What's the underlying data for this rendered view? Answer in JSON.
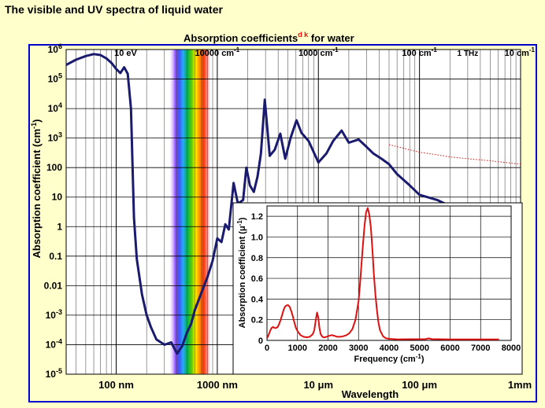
{
  "page_title": "The visible and UV spectra of liquid water",
  "colors": {
    "background": "#ffffcc",
    "frame": "#0000cc",
    "main_curve": "#1a1a6e",
    "inset_curve": "#dd1111",
    "title_superscript": "#ff0000"
  },
  "chart_data": [
    {
      "type": "line",
      "title": "Absorption coefficients",
      "title_superscript": "d k",
      "title_suffix": " for water",
      "xlabel": "Wavelength",
      "ylabel": "Absorption coefficient (cm",
      "ylabel_sup": "-1",
      "ylabel_end": ")",
      "x_scale": "log",
      "y_scale": "log",
      "x_unit": "m",
      "xlim": [
        3.2e-08,
        0.001
      ],
      "ylim": [
        1e-05,
        1000000.0
      ],
      "grid": true,
      "visible_spectrum_band_nm": [
        380,
        780
      ],
      "y_ticks": [
        {
          "value": 1000000.0,
          "base": "10",
          "exp": "6"
        },
        {
          "value": 100000.0,
          "base": "10",
          "exp": "5"
        },
        {
          "value": 10000.0,
          "base": "10",
          "exp": "4"
        },
        {
          "value": 1000.0,
          "base": "10",
          "exp": "3"
        },
        {
          "value": 100,
          "base": "100",
          "exp": ""
        },
        {
          "value": 10,
          "base": "10",
          "exp": ""
        },
        {
          "value": 1,
          "base": "1",
          "exp": ""
        },
        {
          "value": 0.1,
          "base": "0.1",
          "exp": ""
        },
        {
          "value": 0.01,
          "base": "0.01",
          "exp": ""
        },
        {
          "value": 0.001,
          "base": "10",
          "exp": "-3"
        },
        {
          "value": 0.0001,
          "base": "10",
          "exp": "-4"
        },
        {
          "value": 1e-05,
          "base": "10",
          "exp": "-5"
        }
      ],
      "x_ticks_bottom": [
        {
          "value": 1e-07,
          "label": "100 nm"
        },
        {
          "value": 1e-06,
          "label": "1000 nm"
        },
        {
          "value": 1e-05,
          "label": "10 μm"
        },
        {
          "value": 0.0001,
          "label": "100 μm"
        },
        {
          "value": 0.001,
          "label": "1mm"
        }
      ],
      "x_ticks_top": [
        {
          "value": 1.24e-07,
          "label": "10 eV",
          "sup": ""
        },
        {
          "value": 1e-06,
          "label": "10000 cm",
          "sup": "-1"
        },
        {
          "value": 1e-05,
          "label": "1000 cm",
          "sup": "-1"
        },
        {
          "value": 0.0001,
          "label": "100 cm",
          "sup": "-1"
        },
        {
          "value": 0.0003,
          "label": "1 THz",
          "sup": ""
        },
        {
          "value": 0.001,
          "label": "10 cm",
          "sup": "-1"
        }
      ],
      "series": [
        {
          "style": "solid",
          "x": [
            3.2e-08,
            4e-08,
            5e-08,
            6e-08,
            7e-08,
            8e-08,
            9e-08,
            1e-07,
            1.1e-07,
            1.2e-07,
            1.3e-07,
            1.4e-07,
            1.5e-07,
            1.6e-07,
            1.8e-07,
            2e-07,
            2.2e-07,
            2.5e-07,
            3e-07,
            3.5e-07,
            4e-07,
            4.5e-07,
            5e-07,
            5.5e-07,
            6e-07,
            7e-07,
            8e-07,
            9e-07,
            1e-06,
            1.1e-06,
            1.2e-06,
            1.3e-06,
            1.45e-06,
            1.6e-06,
            1.8e-06,
            1.94e-06,
            2.1e-06,
            2.3e-06,
            2.5e-06,
            2.7e-06,
            2.95e-06,
            3.3e-06,
            3.7e-06,
            4.2e-06,
            4.7e-06,
            5.3e-06,
            6.08e-06,
            6.8e-06,
            8e-06,
            1e-05,
            1.2e-05,
            1.4e-05,
            1.7e-05,
            2e-05,
            2.5e-05,
            3e-05,
            3.5e-05,
            4.2e-05,
            5e-05,
            6e-05,
            8e-05,
            0.0001,
            0.00015,
            0.0002,
            0.0003,
            0.0005
          ],
          "y": [
            300000.0,
            450000.0,
            600000.0,
            700000.0,
            650000.0,
            500000.0,
            350000.0,
            220000.0,
            160000.0,
            250000.0,
            150000.0,
            10000.0,
            2,
            0.08,
            0.005,
            0.001,
            0.0004,
            0.00015,
            0.0001,
            0.00012,
            5e-05,
            9e-05,
            0.00025,
            0.0005,
            0.0015,
            0.006,
            0.02,
            0.07,
            0.4,
            0.3,
            1.2,
            0.8,
            30,
            6,
            8,
            100,
            25,
            15,
            50,
            300,
            20000.0,
            250,
            400,
            1400,
            200,
            1000,
            4000,
            1500,
            800,
            150,
            300,
            800,
            1800,
            700,
            900,
            500,
            300,
            200,
            130,
            60,
            25,
            12,
            8,
            5,
            3,
            1.6
          ]
        },
        {
          "style": "dotted",
          "x": [
            5e-05,
            7e-05,
            0.0001,
            0.00015,
            0.0002,
            0.0003,
            0.0005,
            0.0007,
            0.001
          ],
          "y": [
            600,
            450,
            330,
            270,
            230,
            200,
            170,
            150,
            130
          ]
        }
      ]
    },
    {
      "type": "line",
      "xlabel": "Frequency (cm",
      "xlabel_sup": "-1",
      "xlabel_end": ")",
      "ylabel": "Absorption coefficient (μ",
      "ylabel_sup": "-1",
      "ylabel_end": ")",
      "xlim": [
        0,
        8000
      ],
      "ylim": [
        0,
        1.3
      ],
      "grid": true,
      "x_ticks": [
        "0",
        "1000",
        "2000",
        "3000",
        "4000",
        "5000",
        "6000",
        "7000",
        "8000"
      ],
      "y_ticks": [
        "0",
        "0.2",
        "0.4",
        "0.6",
        "0.8",
        "1.0",
        "1.2"
      ],
      "series": [
        {
          "x": [
            0,
            50,
            100,
            150,
            200,
            250,
            300,
            350,
            400,
            450,
            500,
            550,
            600,
            650,
            700,
            750,
            800,
            850,
            900,
            950,
            1000,
            1100,
            1200,
            1300,
            1400,
            1500,
            1550,
            1600,
            1640,
            1680,
            1720,
            1760,
            1800,
            1850,
            1900,
            2000,
            2100,
            2130,
            2200,
            2300,
            2400,
            2500,
            2600,
            2700,
            2800,
            2900,
            3000,
            3050,
            3100,
            3150,
            3200,
            3250,
            3300,
            3350,
            3400,
            3450,
            3500,
            3550,
            3600,
            3650,
            3700,
            3800,
            3900,
            4000,
            4300,
            5200,
            5300,
            5400,
            6000,
            7000,
            7600
          ],
          "y": [
            0.02,
            0.05,
            0.09,
            0.12,
            0.13,
            0.12,
            0.12,
            0.13,
            0.16,
            0.2,
            0.25,
            0.3,
            0.33,
            0.34,
            0.34,
            0.32,
            0.28,
            0.23,
            0.17,
            0.12,
            0.09,
            0.05,
            0.035,
            0.03,
            0.035,
            0.06,
            0.1,
            0.2,
            0.27,
            0.22,
            0.12,
            0.06,
            0.04,
            0.03,
            0.03,
            0.04,
            0.05,
            0.05,
            0.045,
            0.035,
            0.035,
            0.04,
            0.05,
            0.07,
            0.11,
            0.2,
            0.38,
            0.55,
            0.75,
            0.95,
            1.12,
            1.24,
            1.28,
            1.22,
            1.1,
            0.9,
            0.65,
            0.45,
            0.3,
            0.18,
            0.1,
            0.04,
            0.02,
            0.015,
            0.01,
            0.012,
            0.02,
            0.012,
            0.01,
            0.01,
            0.01
          ]
        }
      ]
    }
  ]
}
